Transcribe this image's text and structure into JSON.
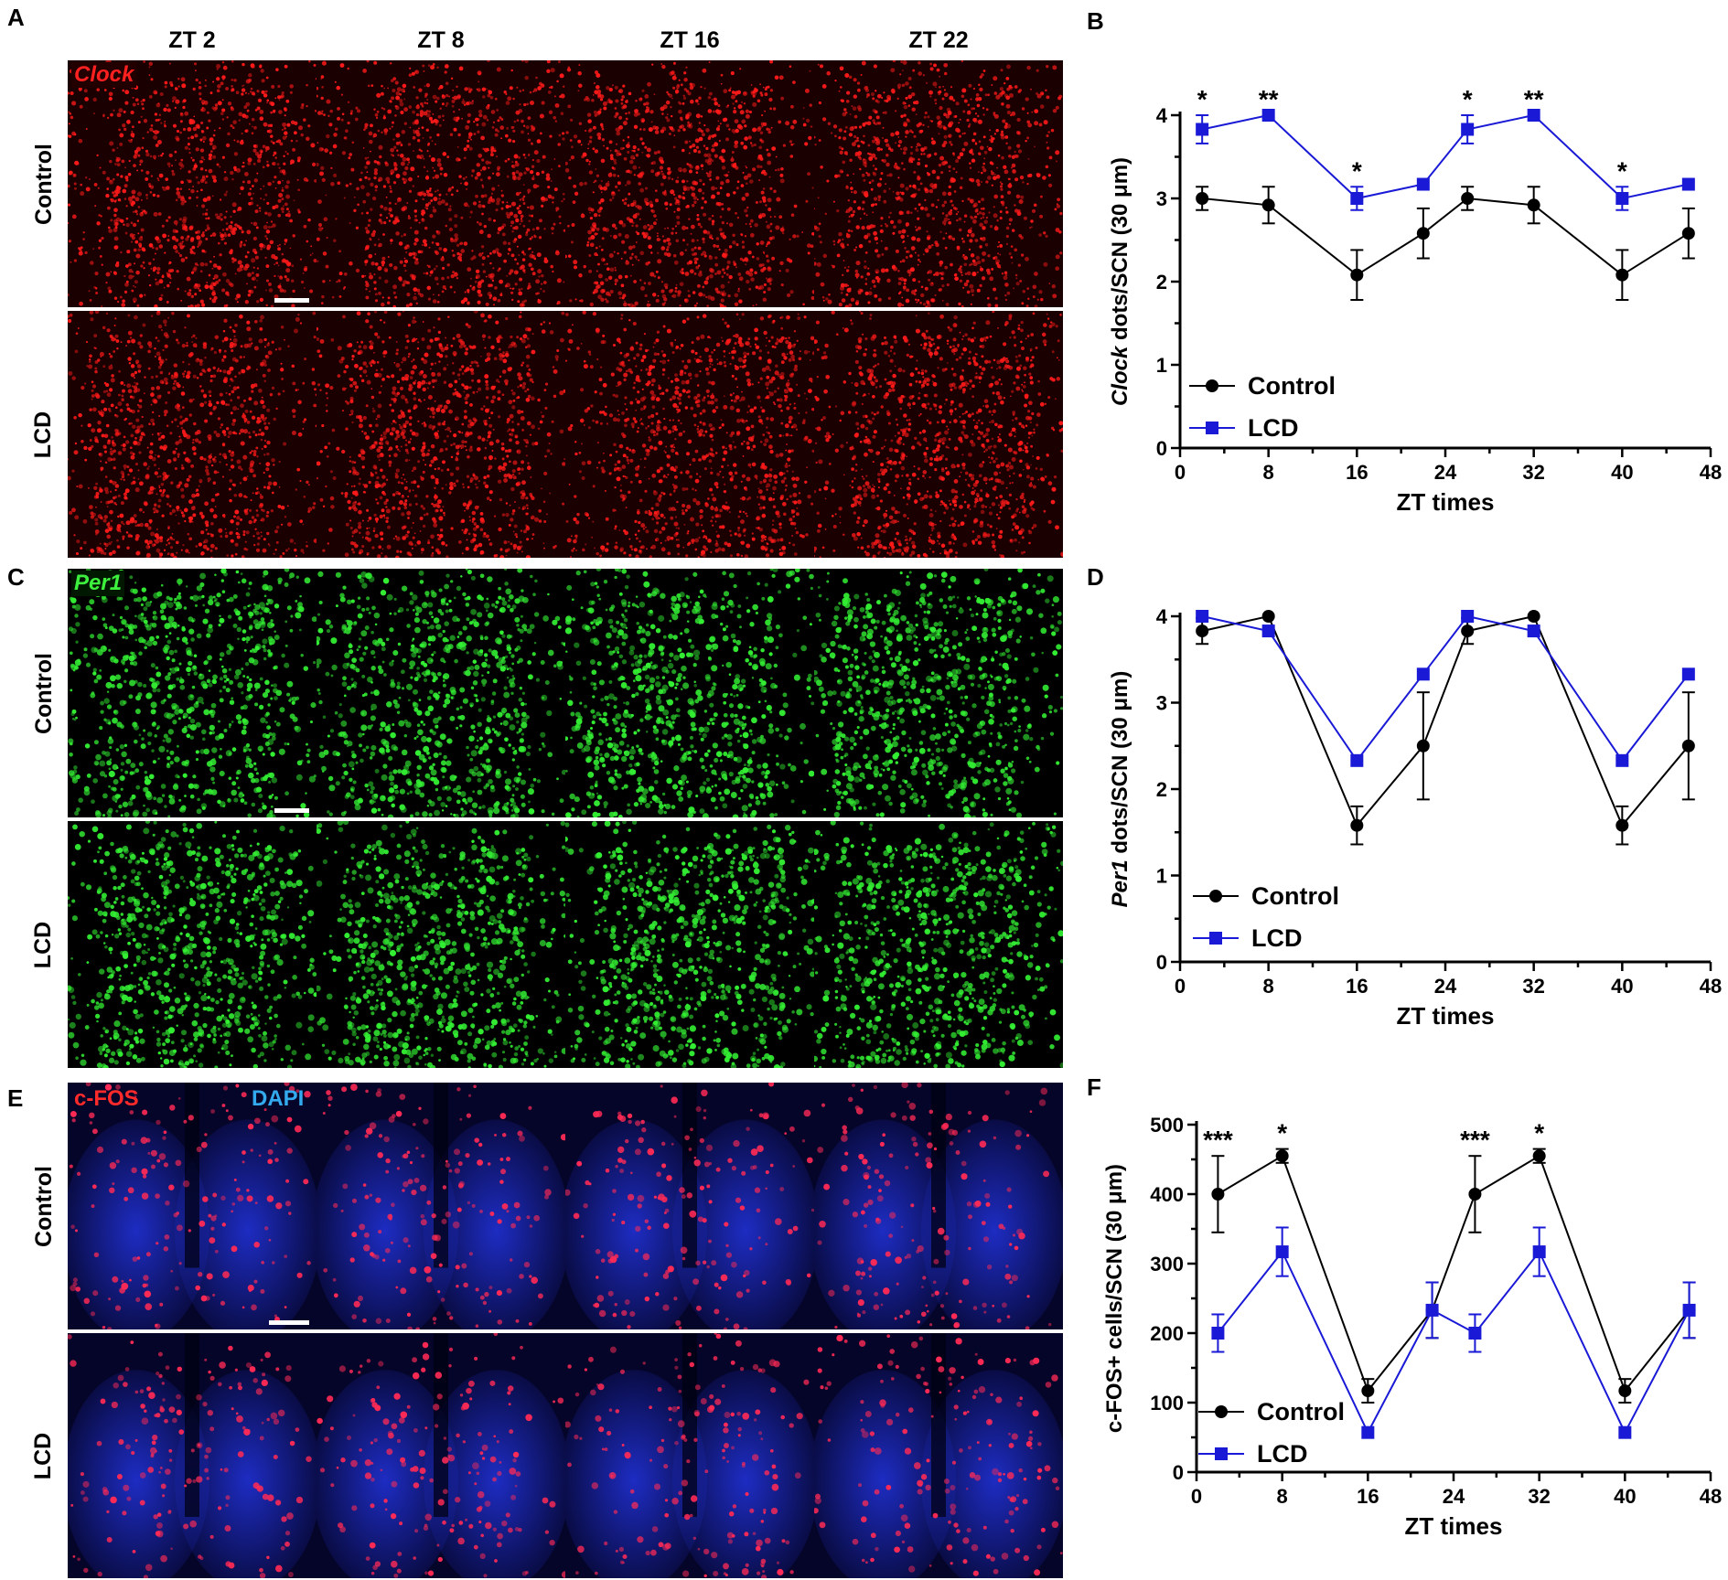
{
  "panel_labels": {
    "A": "A",
    "B": "B",
    "C": "C",
    "D": "D",
    "E": "E",
    "F": "F"
  },
  "columns": [
    "ZT 2",
    "ZT 8",
    "ZT 16",
    "ZT 22"
  ],
  "rows": {
    "control": "Control",
    "lcd": "LCD"
  },
  "stain_labels": {
    "clock": "Clock",
    "per1": "Per1",
    "cfos": "c-FOS",
    "dapi": "DAPI"
  },
  "colors": {
    "control": "#000000",
    "lcd": "#1a1ad6",
    "clock_signal": "#ff1a1a",
    "per1_signal": "#33ee33",
    "cfos_signal": "#ff2a55",
    "dapi_signal": "#2233dd",
    "dapi_label": "#33aaee"
  },
  "chart_data": [
    {
      "panel": "B",
      "type": "line",
      "xlabel": "ZT times",
      "ylabel_italic": "Clock",
      "ylabel_rest": " dots/SCN (30 μm)",
      "xlim": [
        0,
        48
      ],
      "ylim": [
        0,
        4
      ],
      "xticks": [
        0,
        8,
        16,
        24,
        32,
        40,
        48
      ],
      "yticks": [
        0,
        1,
        2,
        3,
        4
      ],
      "legend_placement": "bottom-left",
      "x": [
        2,
        8,
        16,
        22,
        26,
        32,
        40,
        46
      ],
      "series": [
        {
          "name": "Control",
          "values": [
            3.0,
            2.92,
            2.08,
            2.58,
            3.0,
            2.92,
            2.08,
            2.58
          ],
          "errors": [
            0.14,
            0.22,
            0.3,
            0.3,
            0.14,
            0.22,
            0.3,
            0.3
          ]
        },
        {
          "name": "LCD",
          "values": [
            3.83,
            4.0,
            3.0,
            3.17,
            3.83,
            4.0,
            3.0,
            3.17
          ],
          "errors": [
            0.17,
            0.0,
            0.14,
            0.0,
            0.17,
            0.0,
            0.14,
            0.0
          ]
        }
      ],
      "annotations": [
        {
          "x": 2,
          "text": "*"
        },
        {
          "x": 8,
          "text": "**"
        },
        {
          "x": 16,
          "text": "*"
        },
        {
          "x": 26,
          "text": "*"
        },
        {
          "x": 32,
          "text": "**"
        },
        {
          "x": 40,
          "text": "*"
        }
      ]
    },
    {
      "panel": "D",
      "type": "line",
      "xlabel": "ZT times",
      "ylabel_italic": "Per1",
      "ylabel_rest": " dots/SCN (30 μm)",
      "xlim": [
        0,
        48
      ],
      "ylim": [
        0,
        4
      ],
      "xticks": [
        0,
        8,
        16,
        24,
        32,
        40,
        48
      ],
      "yticks": [
        0,
        1,
        2,
        3,
        4
      ],
      "legend_placement": "bottom-left",
      "x": [
        2,
        8,
        16,
        22,
        26,
        32,
        40,
        46
      ],
      "series": [
        {
          "name": "Control",
          "values": [
            3.83,
            4.0,
            1.58,
            2.5,
            3.83,
            4.0,
            1.58,
            2.5
          ],
          "errors": [
            0.15,
            0.0,
            0.22,
            0.62,
            0.15,
            0.0,
            0.22,
            0.62
          ]
        },
        {
          "name": "LCD",
          "values": [
            4.0,
            3.83,
            2.33,
            3.33,
            4.0,
            3.83,
            2.33,
            3.33
          ],
          "errors": [
            0.0,
            0.0,
            0.0,
            0.0,
            0.0,
            0.0,
            0.0,
            0.0
          ]
        }
      ],
      "annotations": []
    },
    {
      "panel": "F",
      "type": "line",
      "xlabel": "ZT times",
      "ylabel_italic": "",
      "ylabel_rest": "c-FOS+ cells/SCN (30 μm)",
      "xlim": [
        0,
        48
      ],
      "ylim": [
        0,
        500
      ],
      "xticks": [
        0,
        8,
        16,
        24,
        32,
        40,
        48
      ],
      "yticks": [
        0,
        100,
        200,
        300,
        400,
        500
      ],
      "legend_placement": "bottom-left",
      "x": [
        2,
        8,
        16,
        22,
        26,
        32,
        40,
        46
      ],
      "series": [
        {
          "name": "Control",
          "values": [
            400,
            455,
            117,
            233,
            400,
            455,
            117,
            233
          ],
          "errors": [
            55,
            10,
            17,
            40,
            55,
            10,
            17,
            40
          ]
        },
        {
          "name": "LCD",
          "values": [
            200,
            317,
            57,
            233,
            200,
            317,
            57,
            233
          ],
          "errors": [
            27,
            35,
            0,
            40,
            27,
            35,
            0,
            40
          ]
        }
      ],
      "annotations": [
        {
          "x": 2,
          "text": "***"
        },
        {
          "x": 8,
          "text": "*"
        },
        {
          "x": 26,
          "text": "***"
        },
        {
          "x": 32,
          "text": "*"
        }
      ]
    }
  ]
}
